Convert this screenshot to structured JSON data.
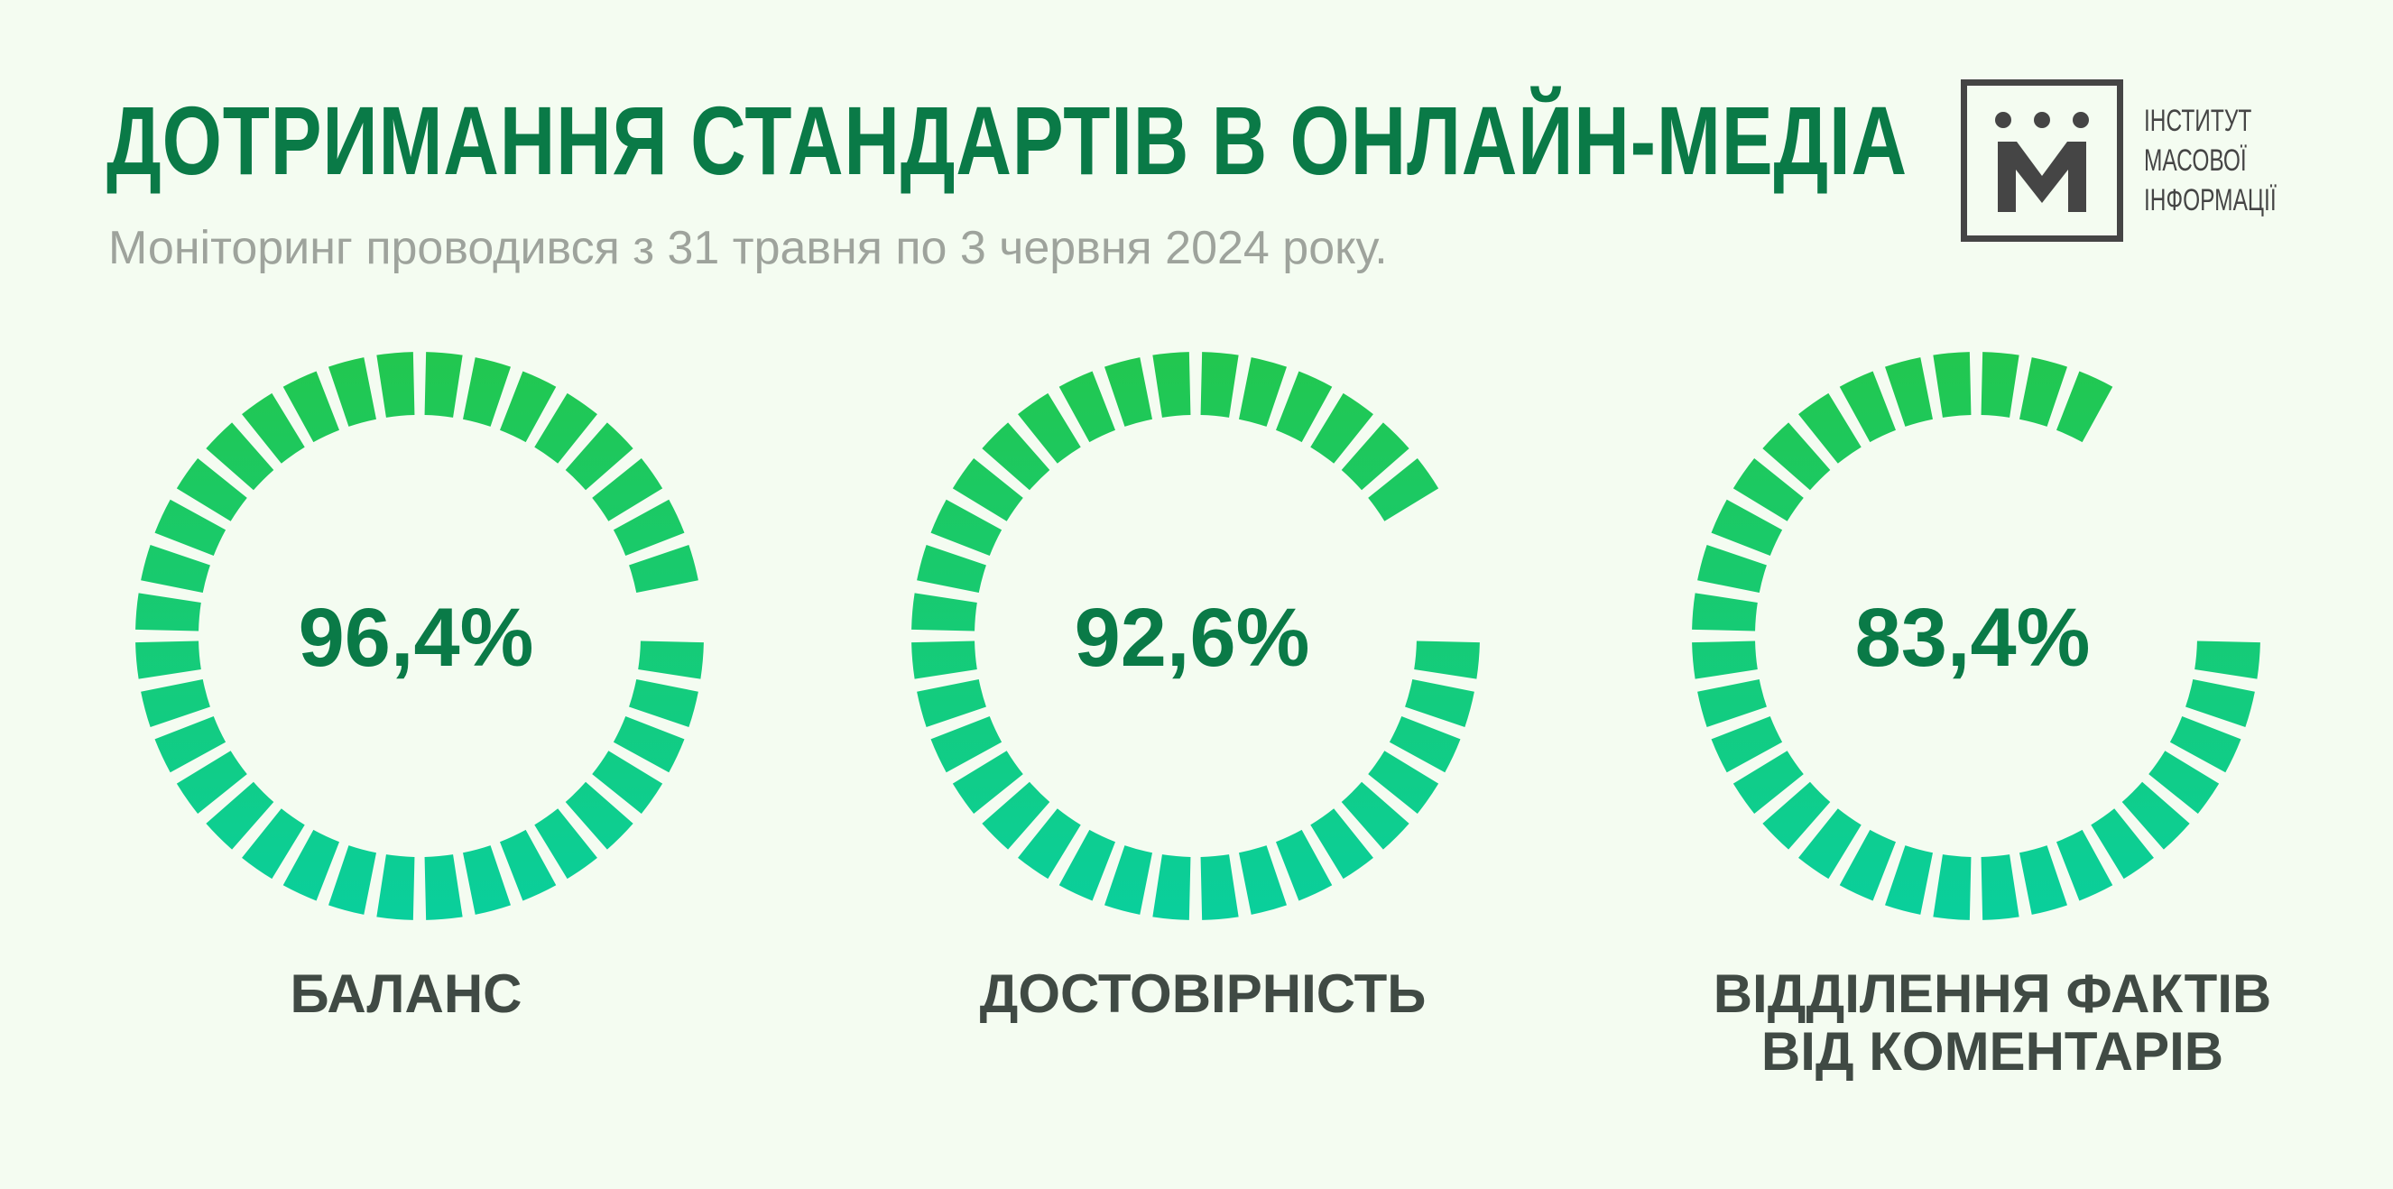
{
  "header": {
    "title": "ДОТРИМАННЯ СТАНДАРТІВ В ОНЛАЙН-МЕДІА",
    "subtitle": "Моніторинг проводився з 31 травня по 3 червня 2024 року."
  },
  "logo": {
    "icon": "imi-logo-icon",
    "lines": [
      "ІНСТИТУТ",
      "МАСОВОЇ",
      "ІНФОРМАЦІЇ"
    ]
  },
  "colors": {
    "title": "#0a7a47",
    "percent_text": "#0a7a47",
    "label_text": "#404a44",
    "gauge_top": "#22c74f",
    "gauge_bottom": "#0acf9c",
    "logo": "#454545",
    "background": "#f4fcf1"
  },
  "chart_data": {
    "type": "radial-progress",
    "segments_per_ring": 36,
    "max": 100,
    "items": [
      {
        "label_lines": [
          "БАЛАНС"
        ],
        "value": 96.4,
        "display": "96,4%"
      },
      {
        "label_lines": [
          "ДОСТОВІРНІСТЬ"
        ],
        "value": 92.6,
        "display": "92,6%"
      },
      {
        "label_lines": [
          "ВІДДІЛЕННЯ ФАКТІВ",
          "ВІД КОМЕНТАРІВ"
        ],
        "value": 83.4,
        "display": "83,4%"
      }
    ]
  }
}
